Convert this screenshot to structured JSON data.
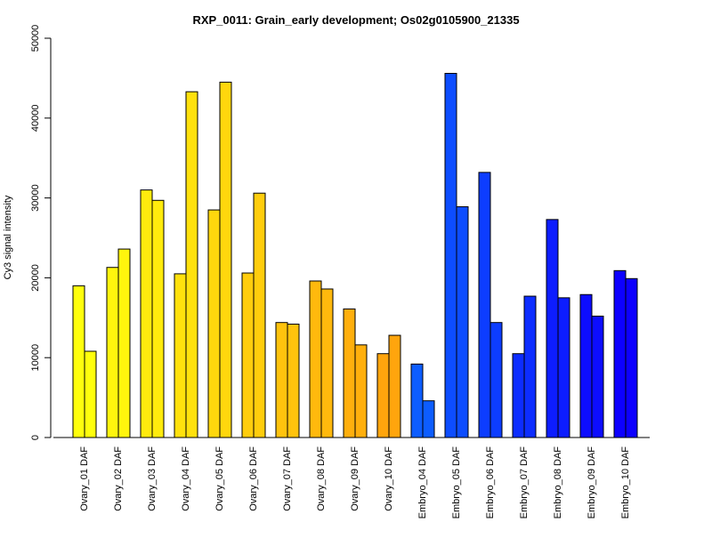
{
  "chart_data": {
    "type": "bar",
    "title": "RXP_0011: Grain_early development; Os02g0105900_21335",
    "xlabel": "",
    "ylabel": "Cy3 signal intensity",
    "ylim": [
      0,
      50000
    ],
    "yticks": [
      0,
      10000,
      20000,
      30000,
      40000,
      50000
    ],
    "grid": false,
    "legend": "none",
    "categories": [
      "Ovary_01 DAF",
      "Ovary_02 DAF",
      "Ovary_03 DAF",
      "Ovary_04 DAF",
      "Ovary_05 DAF",
      "Ovary_06 DAF",
      "Ovary_07 DAF",
      "Ovary_08 DAF",
      "Ovary_09 DAF",
      "Ovary_10 DAF",
      "Embryo_04 DAF",
      "Embryo_05 DAF",
      "Embryo_06 DAF",
      "Embryo_07 DAF",
      "Embryo_08 DAF",
      "Embryo_09 DAF",
      "Embryo_10 DAF"
    ],
    "series": [
      {
        "values": [
          19000,
          21300,
          31000,
          20500,
          28500,
          20600,
          14400,
          19600,
          16100,
          10500,
          9200,
          45600,
          33200,
          10500,
          27300,
          17900,
          20900
        ]
      },
      {
        "values": [
          10800,
          23600,
          29700,
          43300,
          44500,
          30600,
          14200,
          18600,
          11600,
          12800,
          4600,
          28900,
          14400,
          17700,
          17500,
          15200,
          19900
        ]
      }
    ],
    "colors": [
      "#FFFF0D",
      "#FFF50D",
      "#FFEB0D",
      "#FFE10D",
      "#FFD70D",
      "#FFCD0D",
      "#FFC30D",
      "#FFB90D",
      "#FFAF0D",
      "#FFA50D",
      "#0D5DFF",
      "#0D4DFF",
      "#0D3DFF",
      "#0D2DFF",
      "#0D1DFF",
      "#0D0DFF",
      "#0D00FF"
    ]
  }
}
